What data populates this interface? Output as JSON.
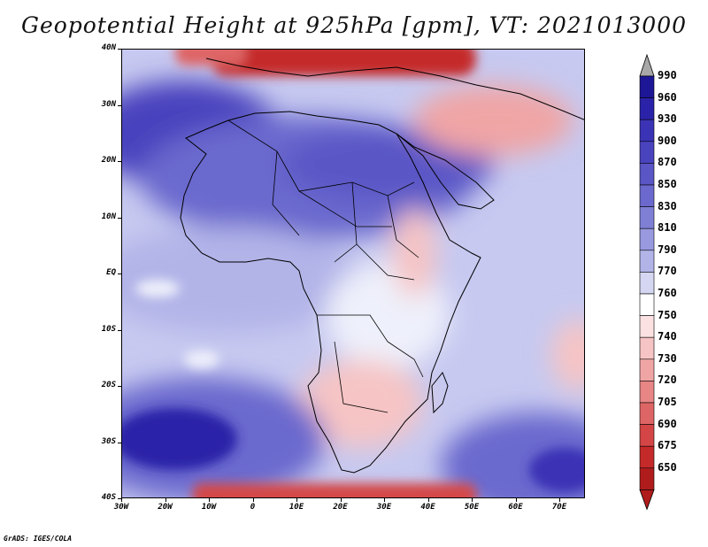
{
  "title": "Geopotential Height at 925hPa [gpm], VT: 2021013000",
  "credit": "GrADS: IGES/COLA",
  "axes": {
    "lat_labels": [
      "40N",
      "30N",
      "20N",
      "10N",
      "EQ",
      "10S",
      "20S",
      "30S",
      "40S"
    ],
    "lon_labels": [
      "30W",
      "20W",
      "10W",
      "0",
      "10E",
      "20E",
      "30E",
      "40E",
      "50E",
      "60E",
      "70E"
    ]
  },
  "colorbar": {
    "levels": [
      "990",
      "960",
      "930",
      "900",
      "870",
      "850",
      "830",
      "810",
      "790",
      "770",
      "760",
      "750",
      "740",
      "730",
      "720",
      "705",
      "690",
      "675",
      "650"
    ],
    "colors": [
      "#1d1696",
      "#2a22a8",
      "#3b33b5",
      "#4a43be",
      "#5a56c6",
      "#6b69ce",
      "#7f7fd6",
      "#9899df",
      "#b2b4e8",
      "#d4d6f2",
      "#ffffff",
      "#fbe1e1",
      "#f6c4c4",
      "#f0a5a5",
      "#e88585",
      "#de6565",
      "#d44646",
      "#c52a2a",
      "#b01c1c"
    ],
    "max_arrow_color": "#a8a8a8",
    "min_arrow_color": "#b01c1c"
  }
}
